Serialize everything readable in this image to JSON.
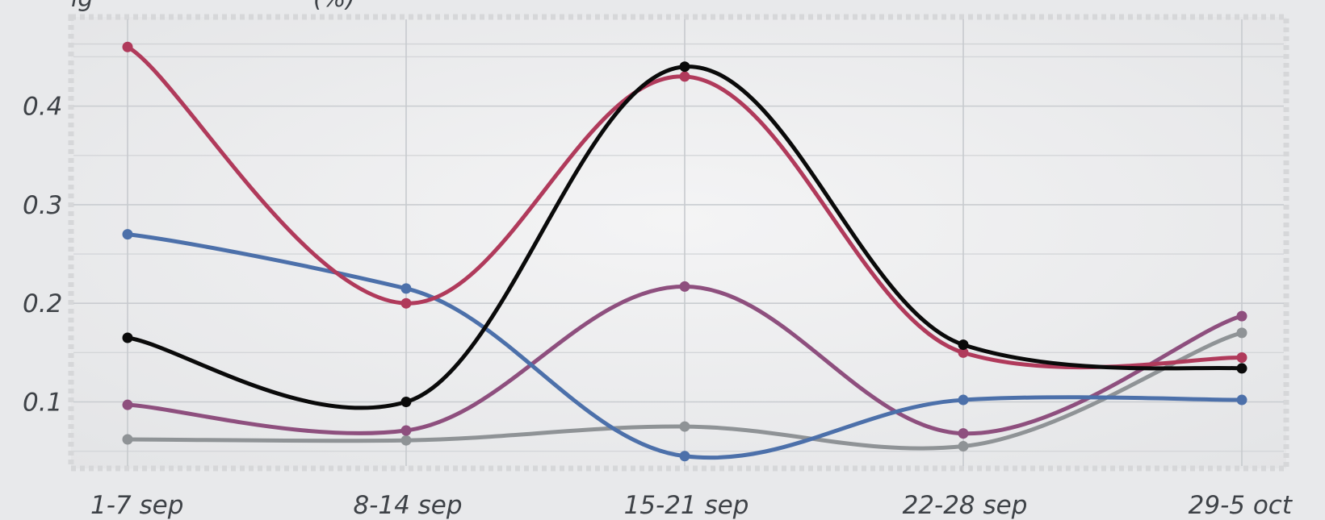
{
  "chart_data": {
    "type": "line",
    "title_fragment": "ig",
    "title_fragment_suffix": "(%)",
    "categories": [
      "1-7 sep",
      "8-14 sep",
      "15-21 sep",
      "22-28 sep",
      "29-5 oct"
    ],
    "yticks": [
      "0.1",
      "0.2",
      "0.3",
      "0.4"
    ],
    "ylim": [
      0.035,
      0.488
    ],
    "grid": true,
    "legend": "none",
    "series": [
      {
        "color": "#b03a5b",
        "values": [
          0.46,
          0.2,
          0.43,
          0.15,
          0.145
        ]
      },
      {
        "color": "#4c70aa",
        "values": [
          0.27,
          0.215,
          0.045,
          0.102,
          0.102
        ]
      },
      {
        "color": "#0a0a0a",
        "values": [
          0.165,
          0.1,
          0.44,
          0.158,
          0.134
        ]
      },
      {
        "color": "#8e4f7e",
        "values": [
          0.097,
          0.071,
          0.217,
          0.068,
          0.187
        ]
      },
      {
        "color": "#8f9396",
        "values": [
          0.062,
          0.061,
          0.075,
          0.055,
          0.17
        ]
      }
    ]
  }
}
